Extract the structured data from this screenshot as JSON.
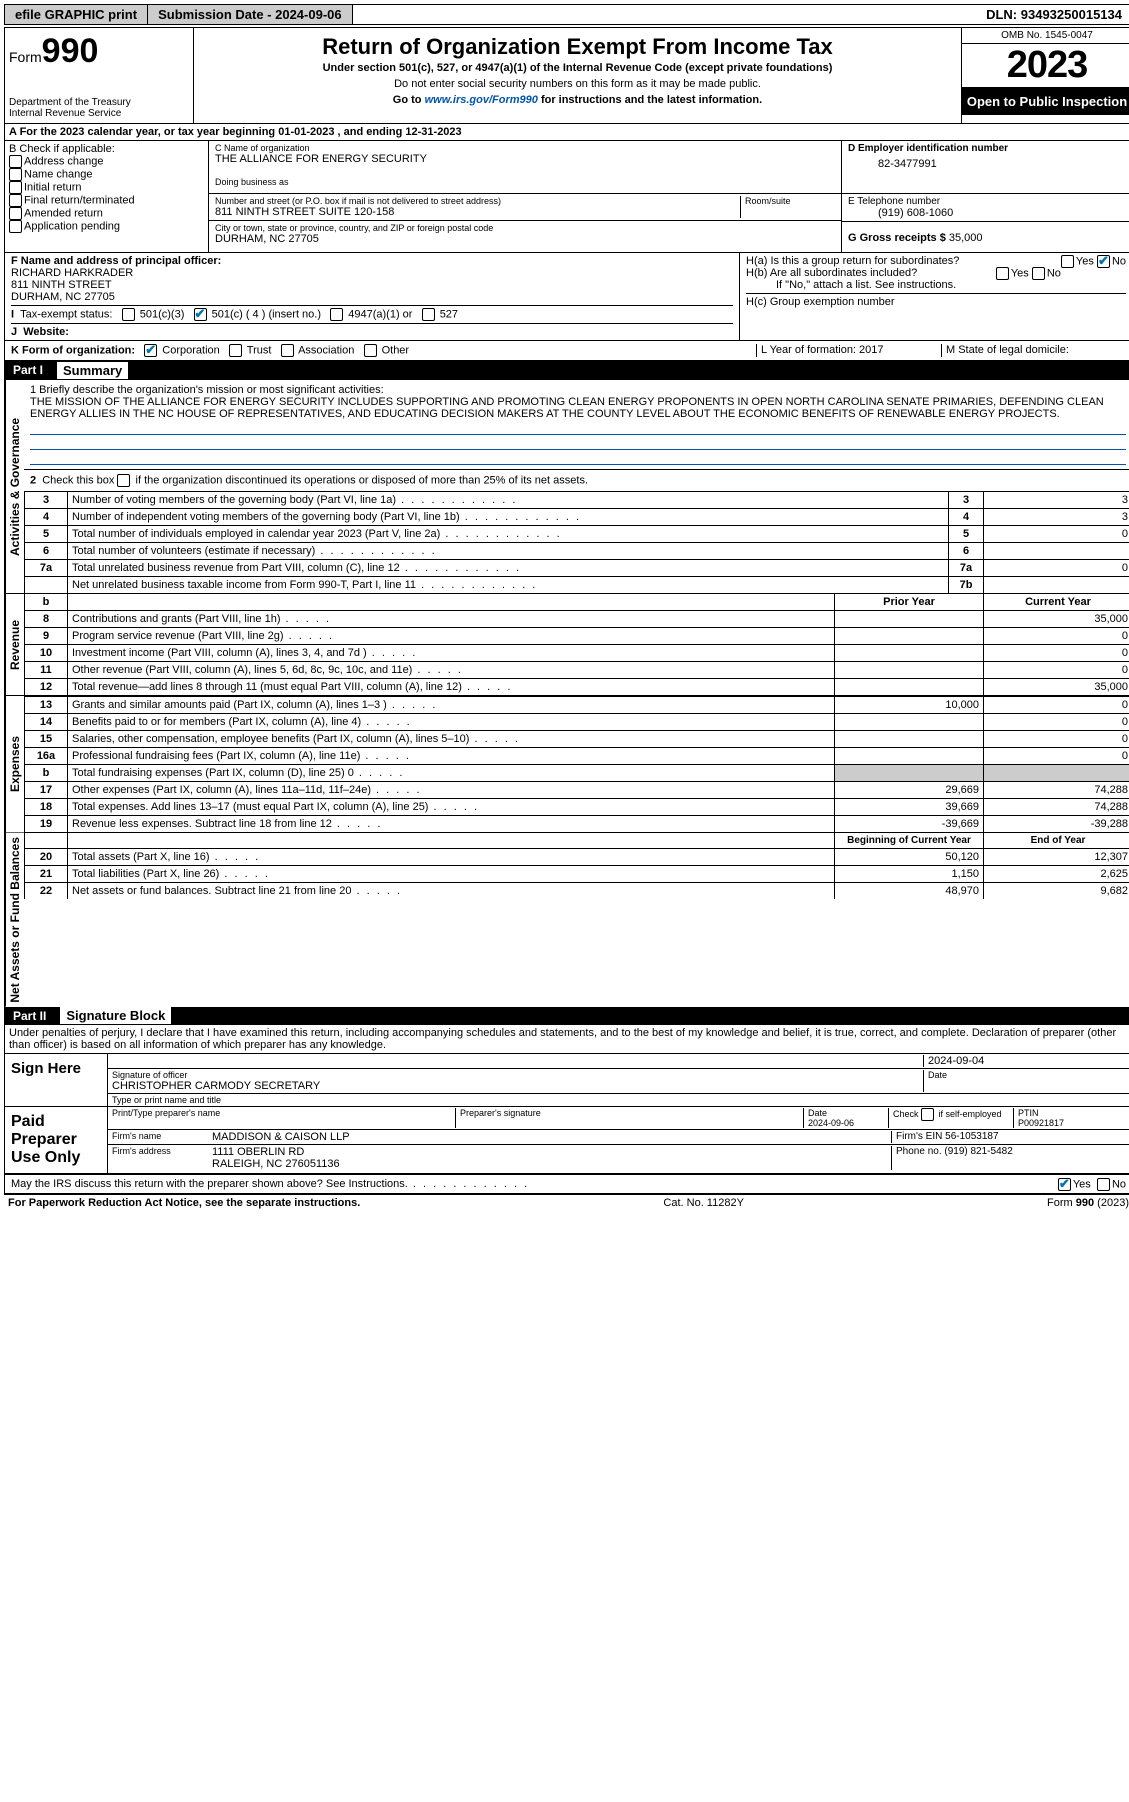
{
  "topbar": {
    "efile": "efile GRAPHIC print",
    "sub_label": "Submission Date - ",
    "sub_date": "2024-09-06",
    "dln_label": "DLN: ",
    "dln": "93493250015134"
  },
  "header": {
    "form": "Form",
    "form_no": "990",
    "dept": "Department of the Treasury\nInternal Revenue Service",
    "title": "Return of Organization Exempt From Income Tax",
    "sub1": "Under section 501(c), 527, or 4947(a)(1) of the Internal Revenue Code (except private foundations)",
    "sub2": "Do not enter social security numbers on this form as it may be made public.",
    "sub3_pre": "Go to ",
    "sub3_link": "www.irs.gov/Form990",
    "sub3_post": " for instructions and the latest information.",
    "omb": "OMB No. 1545-0047",
    "year": "2023",
    "insp": "Open to Public Inspection"
  },
  "rowA": {
    "text_pre": "A For the 2023 calendar year, or tax year beginning ",
    "begin": "01-01-2023",
    "mid": ", and ending ",
    "end": "12-31-2023"
  },
  "checkB": {
    "title": "B Check if applicable:",
    "c1": "Address change",
    "c2": "Name change",
    "c3": "Initial return",
    "c4": "Final return/terminated",
    "c5": "Amended return",
    "c6": "Application pending"
  },
  "boxC": {
    "label": "C Name of organization",
    "name": "THE ALLIANCE FOR ENERGY SECURITY",
    "dba_label": "Doing business as",
    "street_label": "Number and street (or P.O. box if mail is not delivered to street address)",
    "room_label": "Room/suite",
    "street": "811 NINTH STREET SUITE 120-158",
    "city_label": "City or town, state or province, country, and ZIP or foreign postal code",
    "city": "DURHAM, NC  27705"
  },
  "boxD": {
    "label": "D Employer identification number",
    "val": "82-3477991"
  },
  "boxE": {
    "label": "E Telephone number",
    "val": "(919) 608-1060"
  },
  "boxG": {
    "label": "G Gross receipts $ ",
    "val": "35,000"
  },
  "boxF": {
    "label": "F Name and address of principal officer:",
    "name": "RICHARD HARKRADER",
    "addr1": "811 NINTH STREET",
    "addr2": "DURHAM, NC  27705"
  },
  "boxH": {
    "ha": "H(a)  Is this a group return for subordinates?",
    "hb": "H(b)  Are all subordinates included?",
    "hb_note": "If \"No,\" attach a list. See instructions.",
    "hc": "H(c)  Group exemption number ",
    "yes": "Yes",
    "no": "No"
  },
  "rowI": {
    "label": "Tax-exempt status:",
    "c1": "501(c)(3)",
    "c2": "501(c) ( 4 ) (insert no.)",
    "c3": "4947(a)(1) or",
    "c4": "527"
  },
  "rowJ": {
    "label": "Website:"
  },
  "rowK": {
    "label": "K Form of organization:",
    "c1": "Corporation",
    "c2": "Trust",
    "c3": "Association",
    "c4": "Other",
    "L": "L Year of formation: 2017",
    "M": "M State of legal domicile:"
  },
  "part1_title": "Part I",
  "part1_name": "Summary",
  "gov": "Activities & Governance",
  "rev_label": "Revenue",
  "exp_label": "Expenses",
  "net_label": "Net Assets or Fund Balances",
  "line1": {
    "pre": "1  Briefly describe the organization's mission or most significant activities:",
    "text": "THE MISSION OF THE ALLIANCE FOR ENERGY SECURITY INCLUDES SUPPORTING AND PROMOTING CLEAN ENERGY PROPONENTS IN OPEN NORTH CAROLINA SENATE PRIMARIES, DEFENDING CLEAN ENERGY ALLIES IN THE NC HOUSE OF REPRESENTATIVES, AND EDUCATING DECISION MAKERS AT THE COUNTY LEVEL ABOUT THE ECONOMIC BENEFITS OF RENEWABLE ENERGY PROJECTS."
  },
  "line2": "2   Check this box      if the organization discontinued its operations or disposed of more than 25% of its net assets.",
  "govlines": [
    {
      "n": "3",
      "t": "Number of voting members of the governing body (Part VI, line 1a)",
      "c": "3",
      "v": "3"
    },
    {
      "n": "4",
      "t": "Number of independent voting members of the governing body (Part VI, line 1b)",
      "c": "4",
      "v": "3"
    },
    {
      "n": "5",
      "t": "Total number of individuals employed in calendar year 2023 (Part V, line 2a)",
      "c": "5",
      "v": "0"
    },
    {
      "n": "6",
      "t": "Total number of volunteers (estimate if necessary)",
      "c": "6",
      "v": ""
    },
    {
      "n": "7a",
      "t": "Total unrelated business revenue from Part VIII, column (C), line 12",
      "c": "7a",
      "v": "0"
    },
    {
      "n": "",
      "t": "Net unrelated business taxable income from Form 990-T, Part I, line 11",
      "c": "7b",
      "v": ""
    }
  ],
  "colhdr": {
    "b": "b",
    "prior": "Prior Year",
    "curr": "Current Year"
  },
  "revlines": [
    {
      "n": "8",
      "t": "Contributions and grants (Part VIII, line 1h)",
      "p": "",
      "c": "35,000"
    },
    {
      "n": "9",
      "t": "Program service revenue (Part VIII, line 2g)",
      "p": "",
      "c": "0"
    },
    {
      "n": "10",
      "t": "Investment income (Part VIII, column (A), lines 3, 4, and 7d )",
      "p": "",
      "c": "0"
    },
    {
      "n": "11",
      "t": "Other revenue (Part VIII, column (A), lines 5, 6d, 8c, 9c, 10c, and 11e)",
      "p": "",
      "c": "0"
    },
    {
      "n": "12",
      "t": "Total revenue—add lines 8 through 11 (must equal Part VIII, column (A), line 12)",
      "p": "",
      "c": "35,000"
    }
  ],
  "explines": [
    {
      "n": "13",
      "t": "Grants and similar amounts paid (Part IX, column (A), lines 1–3 )",
      "p": "10,000",
      "c": "0"
    },
    {
      "n": "14",
      "t": "Benefits paid to or for members (Part IX, column (A), line 4)",
      "p": "",
      "c": "0"
    },
    {
      "n": "15",
      "t": "Salaries, other compensation, employee benefits (Part IX, column (A), lines 5–10)",
      "p": "",
      "c": "0"
    },
    {
      "n": "16a",
      "t": "Professional fundraising fees (Part IX, column (A), line 11e)",
      "p": "",
      "c": "0"
    },
    {
      "n": "b",
      "t": "Total fundraising expenses (Part IX, column (D), line 25) 0",
      "p": "—shade—",
      "c": "—shade—"
    },
    {
      "n": "17",
      "t": "Other expenses (Part IX, column (A), lines 11a–11d, 11f–24e)",
      "p": "29,669",
      "c": "74,288"
    },
    {
      "n": "18",
      "t": "Total expenses. Add lines 13–17 (must equal Part IX, column (A), line 25)",
      "p": "39,669",
      "c": "74,288"
    },
    {
      "n": "19",
      "t": "Revenue less expenses. Subtract line 18 from line 12",
      "p": "-39,669",
      "c": "-39,288"
    }
  ],
  "nethdr": {
    "beg": "Beginning of Current Year",
    "end": "End of Year"
  },
  "netlines": [
    {
      "n": "20",
      "t": "Total assets (Part X, line 16)",
      "p": "50,120",
      "c": "12,307"
    },
    {
      "n": "21",
      "t": "Total liabilities (Part X, line 26)",
      "p": "1,150",
      "c": "2,625"
    },
    {
      "n": "22",
      "t": "Net assets or fund balances. Subtract line 21 from line 20",
      "p": "48,970",
      "c": "9,682"
    }
  ],
  "part2_title": "Part II",
  "part2_name": "Signature Block",
  "perjury": "Under penalties of perjury, I declare that I have examined this return, including accompanying schedules and statements, and to the best of my knowledge and belief, it is true, correct, and complete. Declaration of preparer (other than officer) is based on all information of which preparer has any knowledge.",
  "sign": {
    "here": "Sign Here",
    "sig_label": "Signature of officer",
    "date": "2024-09-04",
    "date_label": "Date",
    "name": "CHRISTOPHER CARMODY SECRETARY",
    "type_label": "Type or print name and title"
  },
  "prep": {
    "title": "Paid Preparer Use Only",
    "pt_name": "Print/Type preparer's name",
    "pt_sig": "Preparer's signature",
    "pt_date_label": "Date",
    "pt_date": "2024-09-06",
    "check_label": "Check         if self-employed",
    "ptin_label": "PTIN",
    "ptin": "P00921817",
    "firm_label": "Firm's name",
    "firm": "MADDISON & CAISON LLP",
    "ein_label": "Firm's EIN ",
    "ein": "56-1053187",
    "addr_label": "Firm's address ",
    "addr1": "1111 OBERLIN RD",
    "addr2": "RALEIGH, NC  276051136",
    "phone_label": "Phone no. ",
    "phone": "(919) 821-5482"
  },
  "discuss": "May the IRS discuss this return with the preparer shown above? See Instructions.",
  "footer": {
    "pra": "For Paperwork Reduction Act Notice, see the separate instructions.",
    "cat": "Cat. No. 11282Y",
    "form": "Form 990 (2023)"
  }
}
